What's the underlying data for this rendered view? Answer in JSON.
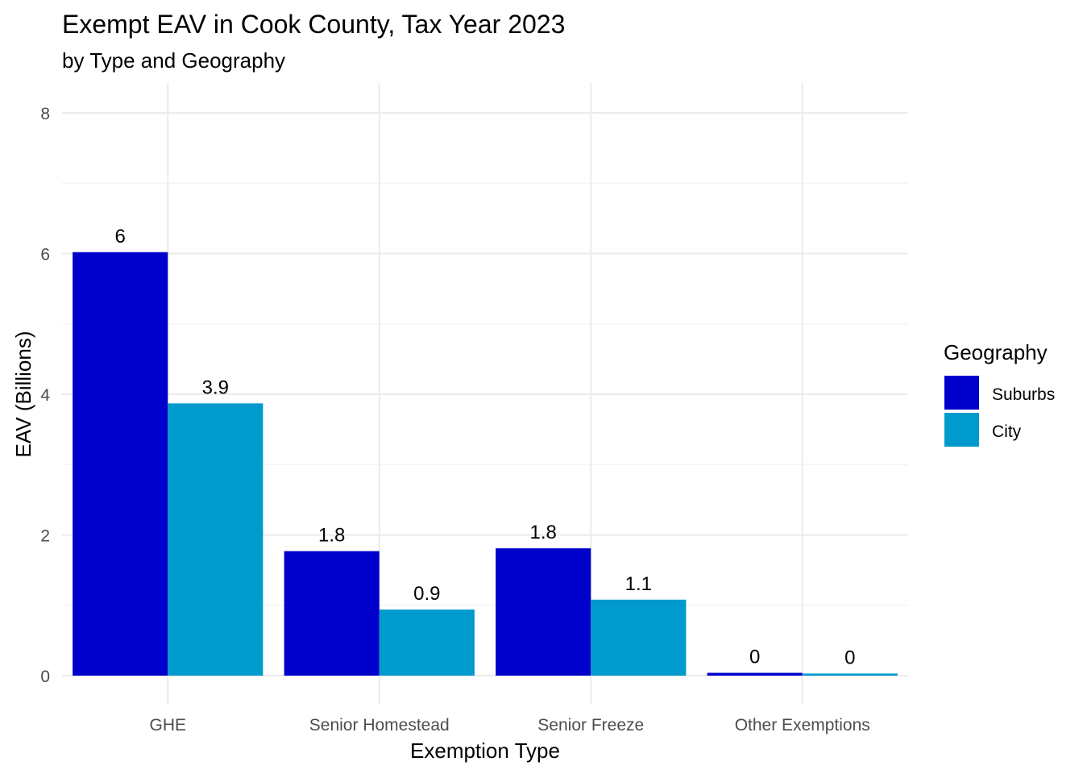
{
  "chart_data": {
    "type": "bar",
    "title": "Exempt EAV in Cook County, Tax Year 2023",
    "subtitle": "by Type and Geography",
    "xlabel": "Exemption Type",
    "ylabel": "EAV (Billions)",
    "ylim": [
      0,
      8
    ],
    "yticks": [
      0,
      2,
      4,
      6,
      8
    ],
    "ytick_labels": [
      "0",
      "2",
      "4",
      "6",
      "8"
    ],
    "categories": [
      "GHE",
      "Senior Homestead",
      "Senior Freeze",
      "Other Exemptions"
    ],
    "series": [
      {
        "name": "Suburbs",
        "color": "#0000CD",
        "values": [
          6.02,
          1.77,
          1.81,
          0.04
        ],
        "labels": [
          "6",
          "1.8",
          "1.8",
          "0"
        ]
      },
      {
        "name": "City",
        "color": "#009ACD",
        "values": [
          3.87,
          0.94,
          1.08,
          0.03
        ],
        "labels": [
          "3.9",
          "0.9",
          "1.1",
          "0"
        ]
      }
    ],
    "legend": {
      "title": "Geography",
      "position": "right"
    },
    "grid": true
  }
}
